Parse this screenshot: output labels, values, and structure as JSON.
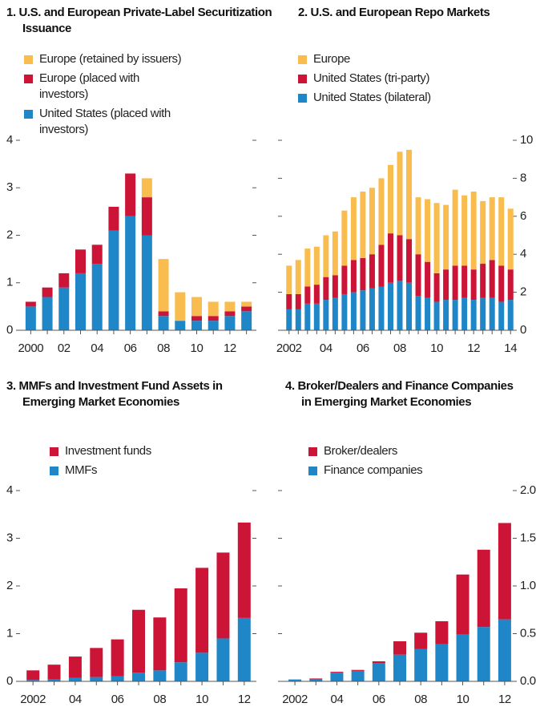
{
  "chart_data": [
    {
      "type": "stacked_bar",
      "title": "1. U.S. and European Private-Label Securitization Issuance",
      "categories": [
        "2000",
        null,
        "02",
        null,
        "04",
        null,
        "06",
        null,
        "08",
        null,
        "10",
        null,
        "12",
        null
      ],
      "series": [
        {
          "name": "United States (placed with investors)",
          "color": "#1f87c8",
          "values": [
            0.5,
            0.7,
            0.9,
            1.2,
            1.4,
            2.1,
            2.4,
            2.0,
            0.3,
            0.2,
            0.2,
            0.2,
            0.3,
            0.4
          ]
        },
        {
          "name": "Europe (placed with investors)",
          "color": "#cc1436",
          "values": [
            0.1,
            0.2,
            0.3,
            0.5,
            0.4,
            0.5,
            0.9,
            0.8,
            0.1,
            0,
            0.1,
            0.1,
            0.1,
            0.1
          ]
        },
        {
          "name": "Europe (retained by issuers)",
          "color": "#f9bd4f",
          "values": [
            0,
            0,
            0,
            0,
            0,
            0,
            0,
            0.4,
            1.1,
            0.6,
            0.4,
            0.3,
            0.2,
            0.1
          ]
        }
      ],
      "ylim": [
        0,
        4
      ],
      "yticks": [
        0,
        1,
        2,
        3,
        4
      ],
      "y_axis_side": "left"
    },
    {
      "type": "stacked_bar",
      "title": "2. U.S. and European Repo Markets",
      "categories": [
        "2002",
        null,
        null,
        null,
        "04",
        null,
        null,
        null,
        "06",
        null,
        null,
        null,
        "08",
        null,
        null,
        null,
        "10",
        null,
        null,
        null,
        "12",
        null,
        null,
        null,
        "14"
      ],
      "series": [
        {
          "name": "United States (bilateral)",
          "color": "#1f87c8",
          "values": [
            1.1,
            1.1,
            1.4,
            1.4,
            1.6,
            1.7,
            1.9,
            2.0,
            2.1,
            2.2,
            2.3,
            2.5,
            2.6,
            2.5,
            1.8,
            1.7,
            1.5,
            1.6,
            1.6,
            1.7,
            1.6,
            1.7,
            1.7,
            1.5,
            1.6
          ]
        },
        {
          "name": "United States (tri-party)",
          "color": "#cc1436",
          "values": [
            0.8,
            0.8,
            0.9,
            1.0,
            1.2,
            1.2,
            1.5,
            1.7,
            1.7,
            1.8,
            2.2,
            2.6,
            2.4,
            2.3,
            2.2,
            1.9,
            1.5,
            1.6,
            1.8,
            1.7,
            1.6,
            1.8,
            2.0,
            1.9,
            1.6
          ]
        },
        {
          "name": "Europe",
          "color": "#f9bd4f",
          "values": [
            1.5,
            1.8,
            2.0,
            2.0,
            2.2,
            2.3,
            2.9,
            3.3,
            3.5,
            3.5,
            3.5,
            3.6,
            4.4,
            4.7,
            3.0,
            3.3,
            3.7,
            3.4,
            4.0,
            3.7,
            4.1,
            3.3,
            3.3,
            3.6,
            3.2
          ]
        }
      ],
      "ylim": [
        0,
        10
      ],
      "yticks": [
        0,
        2,
        4,
        6,
        8,
        10
      ],
      "y_axis_side": "right"
    },
    {
      "type": "stacked_bar",
      "title": "3. MMFs and Investment Fund Assets in Emerging Market Economies",
      "categories": [
        "2002",
        null,
        "04",
        null,
        "06",
        null,
        "08",
        null,
        "10",
        null,
        "12"
      ],
      "series": [
        {
          "name": "MMFs",
          "color": "#1f87c8",
          "values": [
            0.03,
            0.04,
            0.07,
            0.09,
            0.11,
            0.18,
            0.23,
            0.4,
            0.6,
            0.9,
            1.33
          ]
        },
        {
          "name": "Investment funds",
          "color": "#cc1436",
          "values": [
            0.2,
            0.31,
            0.45,
            0.61,
            0.77,
            1.32,
            1.11,
            1.55,
            1.78,
            1.8,
            2.0
          ]
        }
      ],
      "ylim": [
        0,
        4
      ],
      "yticks": [
        0,
        1,
        2,
        3,
        4
      ],
      "y_axis_side": "left"
    },
    {
      "type": "stacked_bar",
      "title": "4. Broker/Dealers and Finance Companies in Emerging Market Economies",
      "categories": [
        "2002",
        null,
        "04",
        null,
        "06",
        null,
        "08",
        null,
        "10",
        null,
        "12"
      ],
      "series": [
        {
          "name": "Finance companies",
          "color": "#1f87c8",
          "values": [
            0.02,
            0.02,
            0.09,
            0.11,
            0.19,
            0.28,
            0.34,
            0.39,
            0.49,
            0.57,
            0.65
          ]
        },
        {
          "name": "Broker/dealers",
          "color": "#cc1436",
          "values": [
            0,
            0.01,
            0.01,
            0.01,
            0.02,
            0.14,
            0.17,
            0.24,
            0.63,
            0.81,
            1.01
          ]
        }
      ],
      "ylim": [
        0,
        2
      ],
      "yticks": [
        {
          "value": 0,
          "label": "0.0"
        },
        {
          "value": 0.5,
          "label": "0.5"
        },
        {
          "value": 1,
          "label": "1.0"
        },
        {
          "value": 1.5,
          "label": "1.5"
        },
        {
          "value": 2,
          "label": "2.0"
        }
      ],
      "y_axis_side": "right"
    }
  ]
}
